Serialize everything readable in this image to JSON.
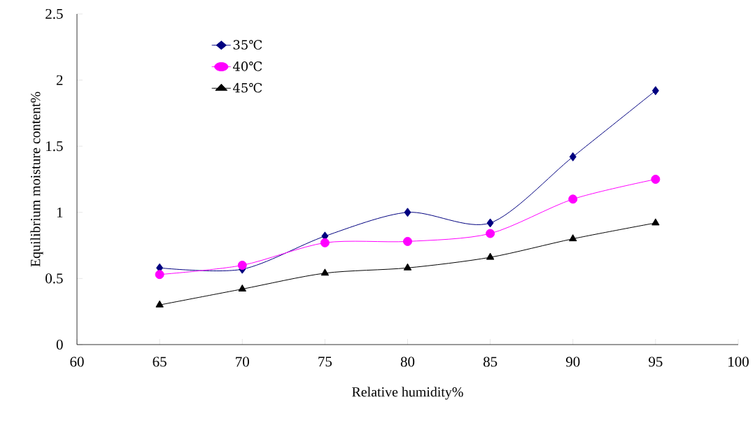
{
  "chart_data": {
    "type": "line",
    "xlabel": "Relative humidity%",
    "ylabel": "Equilibrium moisture content%",
    "x": [
      65,
      70,
      75,
      80,
      85,
      90,
      95
    ],
    "series": [
      {
        "name": "35℃",
        "color": "#000080",
        "marker": "diamond",
        "values": [
          0.58,
          0.57,
          0.82,
          1.0,
          0.92,
          1.42,
          1.92
        ]
      },
      {
        "name": "40℃",
        "color": "#ff00ff",
        "marker": "circle",
        "values": [
          0.53,
          0.6,
          0.77,
          0.78,
          0.84,
          1.1,
          1.25
        ]
      },
      {
        "name": "45℃",
        "color": "#000000",
        "marker": "triangle",
        "values": [
          0.3,
          0.42,
          0.54,
          0.58,
          0.66,
          0.8,
          0.92
        ]
      }
    ],
    "xlim": [
      60,
      100
    ],
    "xticks": [
      60,
      65,
      70,
      75,
      80,
      85,
      90,
      95,
      100
    ],
    "ylim": [
      0,
      2.5
    ],
    "yticks": [
      0,
      0.5,
      1,
      1.5,
      2,
      2.5
    ],
    "grid": false,
    "legend": "top left",
    "line_style": "solid"
  }
}
